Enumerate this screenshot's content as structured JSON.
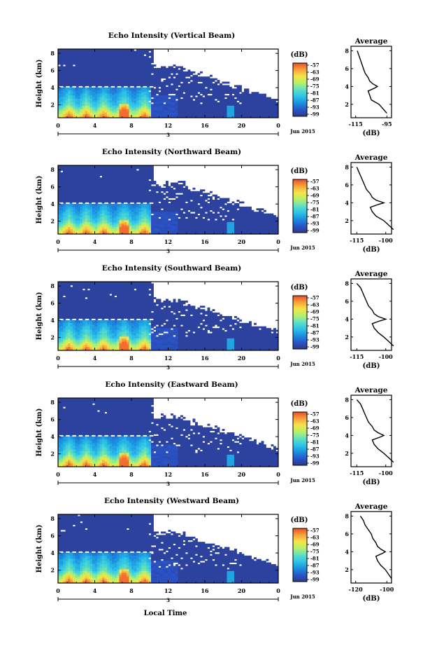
{
  "chart_data": {
    "type": "heatmap",
    "colormap": [
      "#2e3a8c",
      "#2a54c8",
      "#1a8fe0",
      "#2ec3e8",
      "#5fe0c0",
      "#b7ef6a",
      "#f2e64a",
      "#f8a23a",
      "#ec4b2a"
    ],
    "colorbar": {
      "unit": "(dB)",
      "ticks": [
        "-57",
        "-63",
        "-69",
        "-75",
        "-81",
        "-87",
        "-93",
        "-99"
      ]
    },
    "date_label": "Jun 2015",
    "xlabel": "Local Time",
    "x_ticks": [
      "0",
      "4",
      "8",
      "12",
      "16",
      "20",
      "0"
    ],
    "day_label": "3",
    "ylabel": "Height (km)",
    "y_ticks": [
      "2",
      "4",
      "6",
      "8"
    ],
    "average_title": "Average",
    "average_xlabel": "(dB)",
    "average_y_ticks": [
      "2",
      "4",
      "6",
      "8"
    ],
    "panels": [
      {
        "title": "Echo Intensity (Vertical Beam)",
        "avg_x_ticks": [
          "-115",
          "-95"
        ],
        "profile": {
          "height_km": [
            1,
            2,
            2.5,
            3,
            3.5,
            3.8,
            4.0,
            4.3,
            4.6,
            5,
            5.5,
            6,
            6.5,
            7,
            7.5,
            8
          ],
          "db": [
            -95,
            -100,
            -105,
            -106,
            -107,
            -103,
            -101,
            -104,
            -106,
            -107,
            -109,
            -110,
            -111,
            -112,
            -113,
            -114
          ]
        }
      },
      {
        "title": "Echo Intensity (Northward Beam)",
        "avg_x_ticks": [
          "-115",
          "-100"
        ],
        "profile": {
          "height_km": [
            1,
            2,
            2.5,
            3,
            3.5,
            3.8,
            4.0,
            4.3,
            4.6,
            5,
            5.5,
            6,
            6.5,
            7,
            7.5,
            8
          ],
          "db": [
            -96,
            -101,
            -105,
            -107,
            -108,
            -104,
            -101,
            -105,
            -107,
            -108,
            -110,
            -111,
            -112,
            -113,
            -114,
            -115
          ]
        }
      },
      {
        "title": "Echo Intensity (Southward Beam)",
        "avg_x_ticks": [
          "-115",
          "-100"
        ],
        "profile": {
          "height_km": [
            1,
            2,
            2.5,
            3,
            3.5,
            3.8,
            4.0,
            4.3,
            4.6,
            5,
            5.5,
            6,
            6.5,
            7,
            7.5,
            8
          ],
          "db": [
            -96,
            -101,
            -104,
            -106,
            -107,
            -103,
            -100,
            -104,
            -106,
            -107,
            -109,
            -110,
            -111,
            -112,
            -113,
            -115
          ]
        }
      },
      {
        "title": "Echo Intensity (Eastward Beam)",
        "avg_x_ticks": [
          "-115",
          "-100"
        ],
        "profile": {
          "height_km": [
            1,
            2,
            2.5,
            3,
            3.5,
            3.8,
            4.0,
            4.3,
            4.6,
            5,
            5.5,
            6,
            6.5,
            7,
            7.5,
            8
          ],
          "db": [
            -96,
            -101,
            -104,
            -106,
            -107,
            -103,
            -101,
            -104,
            -106,
            -107,
            -109,
            -110,
            -111,
            -112,
            -113,
            -115
          ]
        }
      },
      {
        "title": "Echo Intensity (Westward Beam)",
        "avg_x_ticks": [
          "-120",
          "-100"
        ],
        "profile": {
          "height_km": [
            1,
            2,
            2.5,
            3,
            3.5,
            3.8,
            4.0,
            4.3,
            4.6,
            5,
            5.5,
            6,
            6.5,
            7,
            7.5,
            8
          ],
          "db": [
            -97,
            -101,
            -104,
            -106,
            -107,
            -103,
            -101,
            -104,
            -106,
            -107,
            -109,
            -110,
            -112,
            -114,
            -115,
            -117
          ]
        }
      }
    ]
  }
}
